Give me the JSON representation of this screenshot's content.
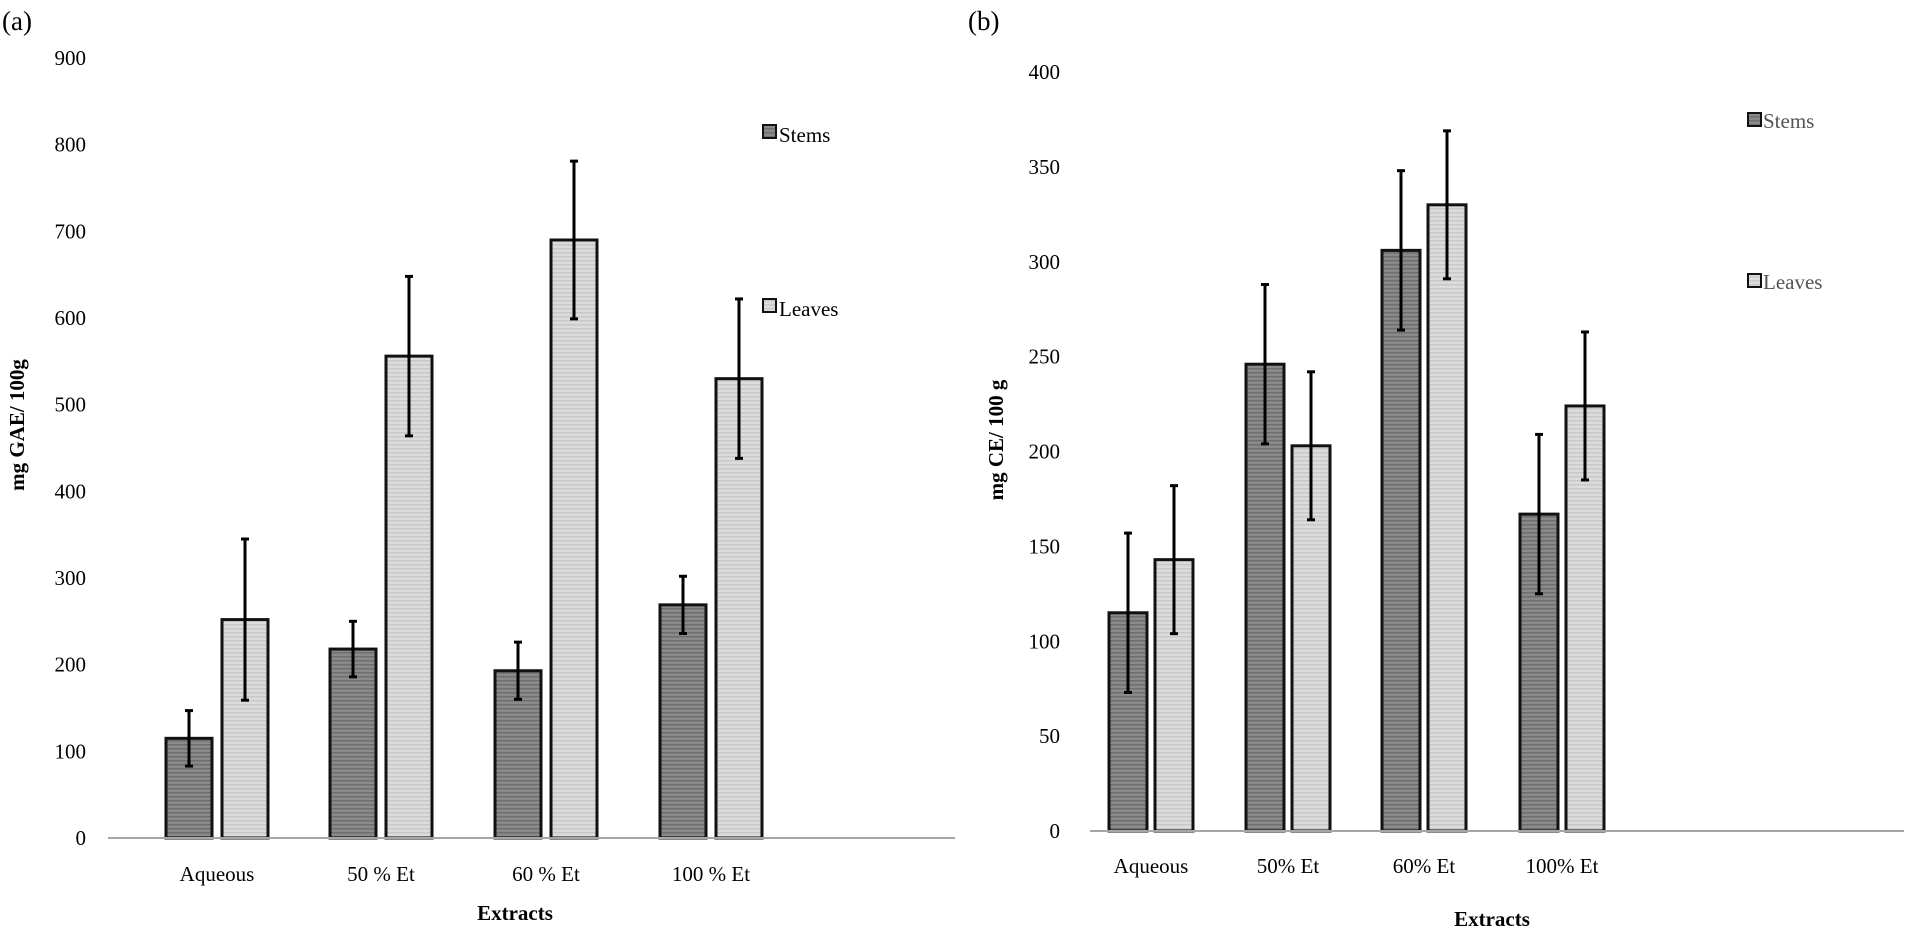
{
  "colors": {
    "stems": "#888888",
    "leaves": "#d6d6d6",
    "bar_stroke": "#111111",
    "axis": "#a6a6a6",
    "error": "#000000"
  },
  "chart_data": [
    {
      "panel_label": "(a)",
      "type": "bar",
      "title": "",
      "xlabel": "Extracts",
      "ylabel": "mg GAE/ 100g",
      "ylim": [
        0,
        900
      ],
      "yticks": [
        0,
        100,
        200,
        300,
        400,
        500,
        600,
        700,
        800,
        900
      ],
      "grid": false,
      "legend_position": "right",
      "categories": [
        "Aqueous",
        "50 % Et",
        "60 % Et",
        "100 % Et"
      ],
      "series": [
        {
          "name": "Stems",
          "values": [
            115,
            218,
            193,
            269
          ],
          "errors": [
            32,
            32,
            33,
            33
          ]
        },
        {
          "name": "Leaves",
          "values": [
            252,
            556,
            690,
            530
          ],
          "errors": [
            93,
            92,
            91,
            92
          ]
        }
      ]
    },
    {
      "panel_label": "(b)",
      "type": "bar",
      "title": "",
      "xlabel": "Extracts",
      "ylabel": "mg CE/ 100 g",
      "ylim": [
        0,
        400
      ],
      "yticks": [
        0,
        50,
        100,
        150,
        200,
        250,
        300,
        350,
        400
      ],
      "grid": false,
      "legend_position": "right",
      "categories": [
        "Aqueous",
        "50% Et",
        "60% Et",
        "100% Et"
      ],
      "series": [
        {
          "name": "Stems",
          "values": [
            115,
            246,
            306,
            167
          ],
          "errors": [
            42,
            42,
            42,
            42
          ]
        },
        {
          "name": "Leaves",
          "values": [
            143,
            203,
            330,
            224
          ],
          "errors": [
            39,
            39,
            39,
            39
          ]
        }
      ]
    }
  ]
}
